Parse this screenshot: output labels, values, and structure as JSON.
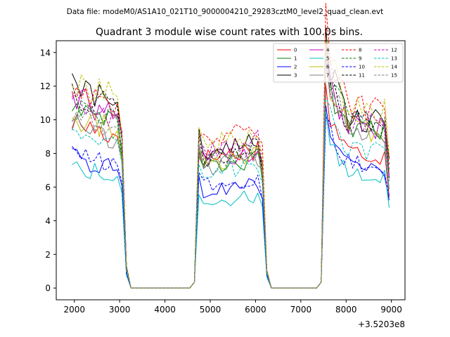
{
  "chart_data": {
    "type": "line",
    "suptitle": "Data file: modeM0/AS1A10_021T10_9000004210_29283cztM0_level2_quad_clean.evt",
    "title": "Quadrant 3 module wise count rates with 100.0s bins.",
    "xlabel": "",
    "ylabel": "",
    "x_offset_label": "+3.5203e8",
    "xlim": [
      1600,
      9300
    ],
    "ylim": [
      -0.7,
      14.7
    ],
    "xticks": [
      2000,
      3000,
      4000,
      5000,
      6000,
      7000,
      8000,
      9000
    ],
    "xtick_labels": [
      "2000",
      "3000",
      "4000",
      "5000",
      "6000",
      "7000",
      "8000",
      "9000"
    ],
    "yticks": [
      0,
      2,
      4,
      6,
      8,
      10,
      12,
      14
    ],
    "ytick_labels": [
      "0",
      "2",
      "4",
      "6",
      "8",
      "10",
      "12",
      "14"
    ],
    "grid": false,
    "legend_position": "upper-right",
    "legend_columns": 4,
    "x": [
      1950,
      2050,
      2150,
      2250,
      2350,
      2450,
      2550,
      2650,
      2750,
      2850,
      2950,
      3050,
      3150,
      3250,
      3350,
      3450,
      3550,
      3650,
      3750,
      3850,
      3950,
      4050,
      4150,
      4250,
      4350,
      4450,
      4550,
      4650,
      4750,
      4850,
      4950,
      5050,
      5150,
      5250,
      5350,
      5450,
      5550,
      5650,
      5750,
      5850,
      5950,
      6050,
      6150,
      6250,
      6350,
      6450,
      6550,
      6650,
      6750,
      6850,
      6950,
      7050,
      7150,
      7250,
      7350,
      7450,
      7550,
      7650,
      7750,
      7850,
      7950,
      8050,
      8150,
      8250,
      8350,
      8450,
      8550,
      8650,
      8750,
      8850,
      8950
    ],
    "segments": [
      {
        "start": 1950,
        "end": 3050,
        "steps": 12
      },
      {
        "start": 4750,
        "end": 6150,
        "steps": 15
      },
      {
        "start": 7550,
        "end": 8950,
        "steps": 15
      }
    ],
    "series": [
      {
        "name": "0",
        "color": "#ff0000",
        "dash": "solid",
        "levels": [
          9.0,
          8.2,
          8.1
        ]
      },
      {
        "name": "1",
        "color": "#008000",
        "dash": "solid",
        "levels": [
          10.2,
          7.6,
          9.4
        ]
      },
      {
        "name": "2",
        "color": "#0000ff",
        "dash": "solid",
        "levels": [
          7.0,
          6.2,
          7.2
        ]
      },
      {
        "name": "3",
        "color": "#000000",
        "dash": "solid",
        "levels": [
          11.0,
          8.5,
          10.2
        ]
      },
      {
        "name": "4",
        "color": "#bf00bf",
        "dash": "solid",
        "levels": [
          10.3,
          8.0,
          9.7
        ]
      },
      {
        "name": "5",
        "color": "#00bfbf",
        "dash": "solid",
        "levels": [
          6.6,
          5.4,
          6.8
        ]
      },
      {
        "name": "6",
        "color": "#bfbf00",
        "dash": "solid",
        "levels": [
          9.3,
          7.8,
          9.5
        ]
      },
      {
        "name": "7",
        "color": "#7f7f7f",
        "dash": "solid",
        "levels": [
          8.8,
          7.7,
          9.1
        ]
      },
      {
        "name": "8",
        "color": "#ff0000",
        "dash": "dashed",
        "levels": [
          10.9,
          9.2,
          10.8
        ]
      },
      {
        "name": "9",
        "color": "#008000",
        "dash": "dashed",
        "levels": [
          9.8,
          8.0,
          9.9
        ]
      },
      {
        "name": "10",
        "color": "#0000ff",
        "dash": "dashed",
        "levels": [
          7.2,
          6.5,
          7.5
        ]
      },
      {
        "name": "11",
        "color": "#000000",
        "dash": "dashed",
        "levels": [
          10.6,
          8.3,
          10.0
        ]
      },
      {
        "name": "12",
        "color": "#bf00bf",
        "dash": "dashed",
        "levels": [
          10.0,
          8.6,
          9.8
        ]
      },
      {
        "name": "13",
        "color": "#00bfbf",
        "dash": "dashed",
        "levels": [
          8.6,
          7.3,
          8.2
        ]
      },
      {
        "name": "14",
        "color": "#bfbf00",
        "dash": "dashed",
        "levels": [
          11.2,
          9.1,
          10.7
        ]
      },
      {
        "name": "15",
        "color": "#7f7f7f",
        "dash": "dashed",
        "levels": [
          9.4,
          7.9,
          9.6
        ]
      }
    ]
  }
}
